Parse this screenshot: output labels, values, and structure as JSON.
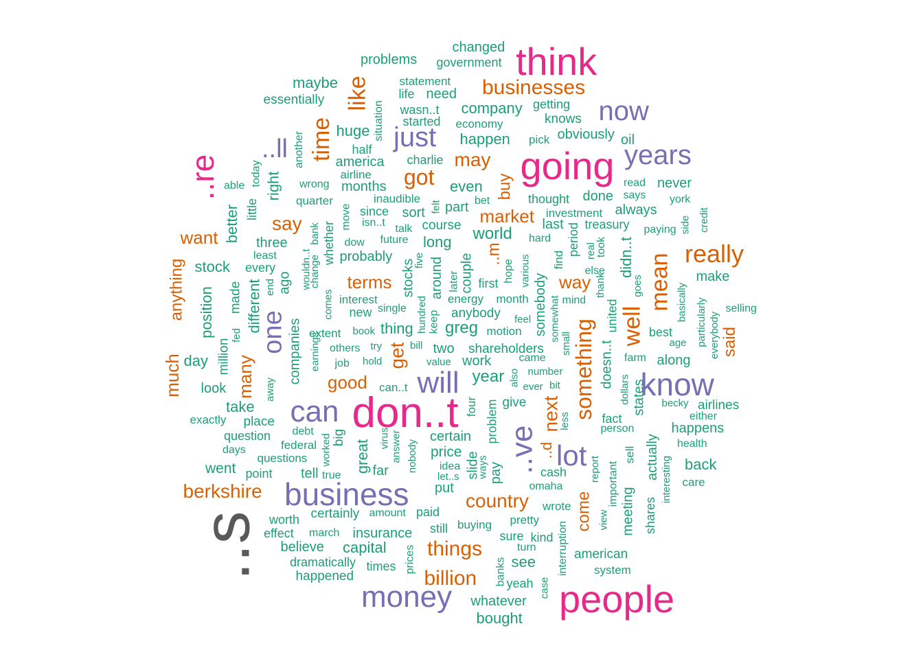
{
  "palette": {
    "tier1": "#595959",
    "tier2": "#e7298a",
    "tier3": "#7570b3",
    "tier4": "#d95f02",
    "tier5": "#1b9e77"
  },
  "words": [
    {
      "text": "..s",
      "tier": 1
    },
    {
      "text": "don..t",
      "tier": 2
    },
    {
      "text": "think",
      "tier": 2
    },
    {
      "text": "going",
      "tier": 2
    },
    {
      "text": "people",
      "tier": 2
    },
    {
      "text": "..re",
      "tier": 2
    },
    {
      "text": "business",
      "tier": 3
    },
    {
      "text": "money",
      "tier": 3
    },
    {
      "text": "know",
      "tier": 3
    },
    {
      "text": "can",
      "tier": 3
    },
    {
      "text": "will",
      "tier": 3
    },
    {
      "text": "now",
      "tier": 3
    },
    {
      "text": "years",
      "tier": 3
    },
    {
      "text": "just",
      "tier": 3
    },
    {
      "text": "..ve",
      "tier": 3
    },
    {
      "text": "lot",
      "tier": 3
    },
    {
      "text": "one",
      "tier": 3
    },
    {
      "text": "..ll",
      "tier": 3
    },
    {
      "text": "businesses",
      "tier": 4
    },
    {
      "text": "like",
      "tier": 4
    },
    {
      "text": "time",
      "tier": 4
    },
    {
      "text": "got",
      "tier": 4
    },
    {
      "text": "may",
      "tier": 4
    },
    {
      "text": "really",
      "tier": 4
    },
    {
      "text": "mean",
      "tier": 4
    },
    {
      "text": "well",
      "tier": 4
    },
    {
      "text": "something",
      "tier": 4
    },
    {
      "text": "berkshire",
      "tier": 4
    },
    {
      "text": "country",
      "tier": 4
    },
    {
      "text": "things",
      "tier": 4
    },
    {
      "text": "billion",
      "tier": 4
    },
    {
      "text": "market",
      "tier": 4
    },
    {
      "text": "say",
      "tier": 4
    },
    {
      "text": "want",
      "tier": 4
    },
    {
      "text": "terms",
      "tier": 4
    },
    {
      "text": "good",
      "tier": 4
    },
    {
      "text": "get",
      "tier": 4
    },
    {
      "text": "way",
      "tier": 4
    },
    {
      "text": "next",
      "tier": 4
    },
    {
      "text": "come",
      "tier": 4
    },
    {
      "text": "many",
      "tier": 4
    },
    {
      "text": "much",
      "tier": 4
    },
    {
      "text": "anything",
      "tier": 4
    },
    {
      "text": "buy",
      "tier": 4
    },
    {
      "text": "said",
      "tier": 4
    },
    {
      "text": "..m",
      "tier": 4
    },
    {
      "text": "..d",
      "tier": 4
    },
    {
      "text": "changed",
      "tier": 5
    },
    {
      "text": "government",
      "tier": 5
    },
    {
      "text": "problems",
      "tier": 5
    },
    {
      "text": "statement",
      "tier": 5
    },
    {
      "text": "maybe",
      "tier": 5
    },
    {
      "text": "life",
      "tier": 5
    },
    {
      "text": "need",
      "tier": 5
    },
    {
      "text": "essentially",
      "tier": 5
    },
    {
      "text": "wasn..t",
      "tier": 5
    },
    {
      "text": "company",
      "tier": 5
    },
    {
      "text": "getting",
      "tier": 5
    },
    {
      "text": "started",
      "tier": 5
    },
    {
      "text": "knows",
      "tier": 5
    },
    {
      "text": "economy",
      "tier": 5
    },
    {
      "text": "huge",
      "tier": 5
    },
    {
      "text": "situation",
      "tier": 5
    },
    {
      "text": "obviously",
      "tier": 5
    },
    {
      "text": "happen",
      "tier": 5
    },
    {
      "text": "pick",
      "tier": 5
    },
    {
      "text": "oil",
      "tier": 5
    },
    {
      "text": "half",
      "tier": 5
    },
    {
      "text": "another",
      "tier": 5
    },
    {
      "text": "america",
      "tier": 5
    },
    {
      "text": "charlie",
      "tier": 5
    },
    {
      "text": "airline",
      "tier": 5
    },
    {
      "text": "today",
      "tier": 5
    },
    {
      "text": "able",
      "tier": 5
    },
    {
      "text": "right",
      "tier": 5
    },
    {
      "text": "wrong",
      "tier": 5
    },
    {
      "text": "months",
      "tier": 5
    },
    {
      "text": "even",
      "tier": 5
    },
    {
      "text": "read",
      "tier": 5
    },
    {
      "text": "never",
      "tier": 5
    },
    {
      "text": "inaudible",
      "tier": 5
    },
    {
      "text": "thought",
      "tier": 5
    },
    {
      "text": "done",
      "tier": 5
    },
    {
      "text": "says",
      "tier": 5
    },
    {
      "text": "york",
      "tier": 5
    },
    {
      "text": "quarter",
      "tier": 5
    },
    {
      "text": "move",
      "tier": 5
    },
    {
      "text": "since",
      "tier": 5
    },
    {
      "text": "felt",
      "tier": 5
    },
    {
      "text": "part",
      "tier": 5
    },
    {
      "text": "bet",
      "tier": 5
    },
    {
      "text": "investment",
      "tier": 5
    },
    {
      "text": "always",
      "tier": 5
    },
    {
      "text": "little",
      "tier": 5
    },
    {
      "text": "better",
      "tier": 5
    },
    {
      "text": "sort",
      "tier": 5
    },
    {
      "text": "last",
      "tier": 5
    },
    {
      "text": "treasury",
      "tier": 5
    },
    {
      "text": "paying",
      "tier": 5
    },
    {
      "text": "side",
      "tier": 5
    },
    {
      "text": "credit",
      "tier": 5
    },
    {
      "text": "isn..t",
      "tier": 5
    },
    {
      "text": "course",
      "tier": 5
    },
    {
      "text": "bank",
      "tier": 5
    },
    {
      "text": "talk",
      "tier": 5
    },
    {
      "text": "whether",
      "tier": 5
    },
    {
      "text": "world",
      "tier": 5
    },
    {
      "text": "three",
      "tier": 5
    },
    {
      "text": "dow",
      "tier": 5
    },
    {
      "text": "future",
      "tier": 5
    },
    {
      "text": "long",
      "tier": 5
    },
    {
      "text": "hard",
      "tier": 5
    },
    {
      "text": "period",
      "tier": 5
    },
    {
      "text": "real",
      "tier": 5
    },
    {
      "text": "took",
      "tier": 5
    },
    {
      "text": "didn..t",
      "tier": 5
    },
    {
      "text": "least",
      "tier": 5
    },
    {
      "text": "wouldn..t",
      "tier": 5
    },
    {
      "text": "probably",
      "tier": 5
    },
    {
      "text": "five",
      "tier": 5
    },
    {
      "text": "find",
      "tier": 5
    },
    {
      "text": "stock",
      "tier": 5
    },
    {
      "text": "every",
      "tier": 5
    },
    {
      "text": "change",
      "tier": 5
    },
    {
      "text": "stocks",
      "tier": 5
    },
    {
      "text": "around",
      "tier": 5
    },
    {
      "text": "couple",
      "tier": 5
    },
    {
      "text": "hope",
      "tier": 5
    },
    {
      "text": "various",
      "tier": 5
    },
    {
      "text": "else",
      "tier": 5
    },
    {
      "text": "make",
      "tier": 5
    },
    {
      "text": "ago",
      "tier": 5
    },
    {
      "text": "end",
      "tier": 5
    },
    {
      "text": "later",
      "tier": 5
    },
    {
      "text": "first",
      "tier": 5
    },
    {
      "text": "thank",
      "tier": 5
    },
    {
      "text": "goes",
      "tier": 5
    },
    {
      "text": "made",
      "tier": 5
    },
    {
      "text": "interest",
      "tier": 5
    },
    {
      "text": "energy",
      "tier": 5
    },
    {
      "text": "month",
      "tier": 5
    },
    {
      "text": "mind",
      "tier": 5
    },
    {
      "text": "basically",
      "tier": 5
    },
    {
      "text": "selling",
      "tier": 5
    },
    {
      "text": "position",
      "tier": 5
    },
    {
      "text": "different",
      "tier": 5
    },
    {
      "text": "comes",
      "tier": 5
    },
    {
      "text": "single",
      "tier": 5
    },
    {
      "text": "new",
      "tier": 5
    },
    {
      "text": "anybody",
      "tier": 5
    },
    {
      "text": "somebody",
      "tier": 5
    },
    {
      "text": "united",
      "tier": 5
    },
    {
      "text": "particularly",
      "tier": 5
    },
    {
      "text": "hundred",
      "tier": 5
    },
    {
      "text": "keep",
      "tier": 5
    },
    {
      "text": "feel",
      "tier": 5
    },
    {
      "text": "somewhat",
      "tier": 5
    },
    {
      "text": "fed",
      "tier": 5
    },
    {
      "text": "extent",
      "tier": 5
    },
    {
      "text": "book",
      "tier": 5
    },
    {
      "text": "thing",
      "tier": 5
    },
    {
      "text": "greg",
      "tier": 5
    },
    {
      "text": "motion",
      "tier": 5
    },
    {
      "text": "best",
      "tier": 5
    },
    {
      "text": "age",
      "tier": 5
    },
    {
      "text": "everybody",
      "tier": 5
    },
    {
      "text": "million",
      "tier": 5
    },
    {
      "text": "companies",
      "tier": 5
    },
    {
      "text": "earnings",
      "tier": 5
    },
    {
      "text": "others",
      "tier": 5
    },
    {
      "text": "try",
      "tier": 5
    },
    {
      "text": "bill",
      "tier": 5
    },
    {
      "text": "two",
      "tier": 5
    },
    {
      "text": "shareholders",
      "tier": 5
    },
    {
      "text": "small",
      "tier": 5
    },
    {
      "text": "day",
      "tier": 5
    },
    {
      "text": "job",
      "tier": 5
    },
    {
      "text": "hold",
      "tier": 5
    },
    {
      "text": "value",
      "tier": 5
    },
    {
      "text": "work",
      "tier": 5
    },
    {
      "text": "came",
      "tier": 5
    },
    {
      "text": "doesn..t",
      "tier": 5
    },
    {
      "text": "farm",
      "tier": 5
    },
    {
      "text": "along",
      "tier": 5
    },
    {
      "text": "dollars",
      "tier": 5
    },
    {
      "text": "number",
      "tier": 5
    },
    {
      "text": "year",
      "tier": 5
    },
    {
      "text": "also",
      "tier": 5
    },
    {
      "text": "ever",
      "tier": 5
    },
    {
      "text": "bit",
      "tier": 5
    },
    {
      "text": "look",
      "tier": 5
    },
    {
      "text": "away",
      "tier": 5
    },
    {
      "text": "can..t",
      "tier": 5
    },
    {
      "text": "states",
      "tier": 5
    },
    {
      "text": "four",
      "tier": 5
    },
    {
      "text": "give",
      "tier": 5
    },
    {
      "text": "becky",
      "tier": 5
    },
    {
      "text": "airlines",
      "tier": 5
    },
    {
      "text": "take",
      "tier": 5
    },
    {
      "text": "either",
      "tier": 5
    },
    {
      "text": "exactly",
      "tier": 5
    },
    {
      "text": "place",
      "tier": 5
    },
    {
      "text": "problem",
      "tier": 5
    },
    {
      "text": "less",
      "tier": 5
    },
    {
      "text": "fact",
      "tier": 5
    },
    {
      "text": "person",
      "tier": 5
    },
    {
      "text": "happens",
      "tier": 5
    },
    {
      "text": "debt",
      "tier": 5
    },
    {
      "text": "question",
      "tier": 5
    },
    {
      "text": "big",
      "tier": 5
    },
    {
      "text": "virus",
      "tier": 5
    },
    {
      "text": "certain",
      "tier": 5
    },
    {
      "text": "answer",
      "tier": 5
    },
    {
      "text": "federal",
      "tier": 5
    },
    {
      "text": "days",
      "tier": 5
    },
    {
      "text": "worked",
      "tier": 5
    },
    {
      "text": "great",
      "tier": 5
    },
    {
      "text": "nobody",
      "tier": 5
    },
    {
      "text": "price",
      "tier": 5
    },
    {
      "text": "slide",
      "tier": 5
    },
    {
      "text": "health",
      "tier": 5
    },
    {
      "text": "questions",
      "tier": 5
    },
    {
      "text": "idea",
      "tier": 5
    },
    {
      "text": "ways",
      "tier": 5
    },
    {
      "text": "pay",
      "tier": 5
    },
    {
      "text": "sell",
      "tier": 5
    },
    {
      "text": "actually",
      "tier": 5
    },
    {
      "text": "report",
      "tier": 5
    },
    {
      "text": "went",
      "tier": 5
    },
    {
      "text": "far",
      "tier": 5
    },
    {
      "text": "tell",
      "tier": 5
    },
    {
      "text": "let..s",
      "tier": 5
    },
    {
      "text": "cash",
      "tier": 5
    },
    {
      "text": "back",
      "tier": 5
    },
    {
      "text": "point",
      "tier": 5
    },
    {
      "text": "true",
      "tier": 5
    },
    {
      "text": "important",
      "tier": 5
    },
    {
      "text": "care",
      "tier": 5
    },
    {
      "text": "put",
      "tier": 5
    },
    {
      "text": "omaha",
      "tier": 5
    },
    {
      "text": "interesting",
      "tier": 5
    },
    {
      "text": "wrote",
      "tier": 5
    },
    {
      "text": "meeting",
      "tier": 5
    },
    {
      "text": "worth",
      "tier": 5
    },
    {
      "text": "certainly",
      "tier": 5
    },
    {
      "text": "amount",
      "tier": 5
    },
    {
      "text": "paid",
      "tier": 5
    },
    {
      "text": "pretty",
      "tier": 5
    },
    {
      "text": "view",
      "tier": 5
    },
    {
      "text": "buying",
      "tier": 5
    },
    {
      "text": "shares",
      "tier": 5
    },
    {
      "text": "effect",
      "tier": 5
    },
    {
      "text": "march",
      "tier": 5
    },
    {
      "text": "insurance",
      "tier": 5
    },
    {
      "text": "still",
      "tier": 5
    },
    {
      "text": "sure",
      "tier": 5
    },
    {
      "text": "kind",
      "tier": 5
    },
    {
      "text": "interruption",
      "tier": 5
    },
    {
      "text": "believe",
      "tier": 5
    },
    {
      "text": "capital",
      "tier": 5
    },
    {
      "text": "turn",
      "tier": 5
    },
    {
      "text": "american",
      "tier": 5
    },
    {
      "text": "prices",
      "tier": 5
    },
    {
      "text": "dramatically",
      "tier": 5
    },
    {
      "text": "times",
      "tier": 5
    },
    {
      "text": "see",
      "tier": 5
    },
    {
      "text": "system",
      "tier": 5
    },
    {
      "text": "happened",
      "tier": 5
    },
    {
      "text": "banks",
      "tier": 5
    },
    {
      "text": "yeah",
      "tier": 5
    },
    {
      "text": "case",
      "tier": 5
    },
    {
      "text": "whatever",
      "tier": 5
    },
    {
      "text": "bought",
      "tier": 5
    }
  ]
}
